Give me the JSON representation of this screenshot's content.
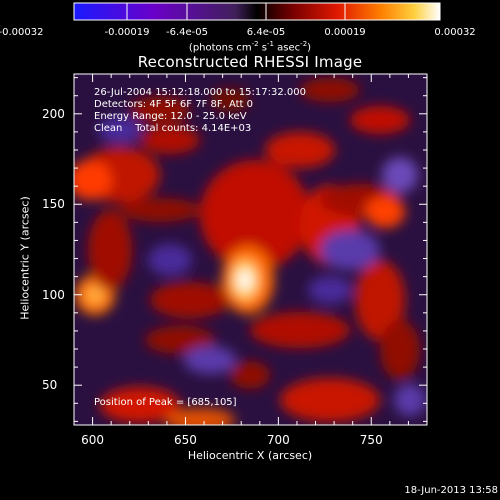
{
  "colorbar": {
    "ticks": [
      "-0.00032",
      "-0.00019",
      "-6.4e-05",
      "6.4e-05",
      "0.00019",
      "0.00032"
    ],
    "units": {
      "prefix": "(photons cm",
      "exp1": "-2",
      "mid1": " s",
      "exp2": "-1",
      "mid2": " asec",
      "exp3": "-2",
      "suffix": ")"
    },
    "colormap": "red-temperature with blue-to-purple negatives",
    "range": [
      -0.00032,
      0.00032
    ]
  },
  "plot": {
    "title": "Reconstructed RHESSI Image",
    "info_lines": [
      "26-Jul-2004 15:12:18.000 to 15:17:32.000",
      "Detectors: 4F 5F 6F 7F 8F, Att 0",
      "Energy Range: 12.0 - 25.0 keV",
      "Clean    Total counts: 4.14E+03"
    ],
    "peak_text": "Position of Peak = [685,105]",
    "xlabel": "Heliocentric X (arcsec)",
    "ylabel": "Heliocentric Y (arcsec)",
    "x_ticks": [
      "600",
      "650",
      "700",
      "750"
    ],
    "y_ticks": [
      "50",
      "100",
      "150",
      "200"
    ],
    "x_range": [
      590,
      780
    ],
    "y_range": [
      28,
      222
    ]
  },
  "footer": {
    "timestamp": "18-Jun-2013 13:58"
  },
  "colors": {
    "background": "#000000",
    "foreground": "#ffffff"
  }
}
